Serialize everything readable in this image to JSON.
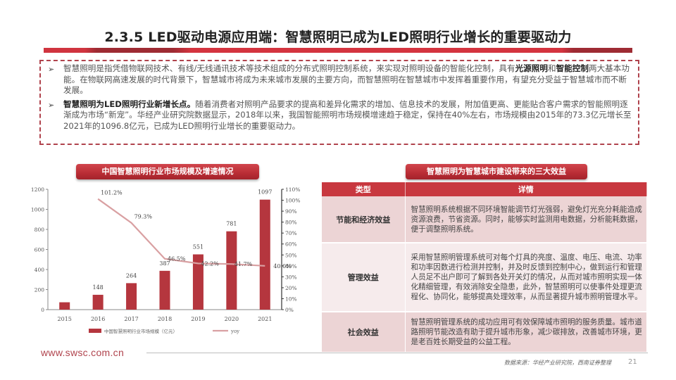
{
  "header": {
    "title": "2.3.5 LED驱动电源应用端：智慧照明已成为LED照明行业增长的重要驱动力"
  },
  "summary": {
    "bullets": [
      {
        "segments": [
          {
            "text": "智慧照明是指凭借物联网技术、有线/无线通讯技术等技术组成的分布式照明控制系统，来实现对照明设备的智能化控制，具有",
            "bold": false
          },
          {
            "text": "光源照明",
            "bold": true
          },
          {
            "text": "和",
            "bold": false
          },
          {
            "text": "智能控制",
            "bold": true
          },
          {
            "text": "两大基本功能。在物联网高速发展的时代背景下，智慧城市将成为未来城市发展的主要方向，而智慧照明在智慧城市中发挥着重要作用，有望充分受益于智慧城市而不断发展。",
            "bold": false
          }
        ]
      },
      {
        "segments": [
          {
            "text": "智慧照明为LED照明行业新增长点。",
            "bold": true
          },
          {
            "text": "随着消费者对照明产品要求的提高和差异化需求的增加、信息技术的发展，附加值更高、更能贴合客户需求的智能照明逐渐成为市场“新宠”。华经产业研究院数据显示，2018年以来，我国智能照明市场规模增速趋于稳定，保持在40%左右，市场规模由2015年的73.3亿元增长至2021年的1096.8亿元，已成为LED照明行业增长的重要驱动力。",
            "bold": false
          }
        ]
      }
    ]
  },
  "chart_section": {
    "title": "中国智慧照明行业市场规模及增速情况"
  },
  "chart_data": {
    "type": "bar",
    "title": "中国智慧照明行业市场规模及增速情况",
    "categories": [
      "2015",
      "2016",
      "2017",
      "2018",
      "2019",
      "2020",
      "2021"
    ],
    "series": [
      {
        "name": "中国智慧照明行业市场规模（亿元）",
        "type": "bar",
        "axis": "left",
        "values": [
          73.3,
          148,
          264,
          387,
          551,
          781,
          1097
        ],
        "labels": [
          "",
          "148",
          "264",
          "387",
          "551",
          "781",
          "1097"
        ],
        "color": "#b5363e"
      },
      {
        "name": "yoy",
        "type": "line",
        "axis": "right",
        "values": [
          null,
          101.2,
          79.3,
          46.5,
          42.2,
          41.7,
          40.0
        ],
        "labels": [
          "",
          "101.2%",
          "79.3%",
          "46.5%",
          "42.2%",
          "41.7%",
          "40.0%"
        ],
        "color": "#d9a0a2"
      }
    ],
    "left_axis": {
      "ticks": [
        "0",
        "200",
        "400",
        "600",
        "800",
        "1000",
        "1200"
      ],
      "ylim": [
        0,
        1200
      ]
    },
    "right_axis": {
      "ticks": [
        "0%",
        "10%",
        "20%",
        "30%",
        "40%",
        "50%",
        "60%",
        "70%",
        "80%",
        "90%",
        "100%",
        "110%"
      ],
      "ylim": [
        0,
        110
      ]
    },
    "xlabel": "",
    "ylabel": "",
    "grid": false,
    "legend_position": "bottom"
  },
  "table_section": {
    "title": "智慧照明为智慧城市建设带来的三大效益",
    "headers": [
      "类型",
      "详情"
    ],
    "rows": [
      {
        "type": "节能和经济效益",
        "detail": "智慧照明系统根据不同环境智能调节灯光强弱，避免灯光充分耗能造成资源浪费，节省资源。同时，能够实时监测用电数据，分析能耗数据，便于调整照明系统。"
      },
      {
        "type": "管理效益",
        "detail": "采用智慧照明管理系统可对每个灯具的亮度、温度、电压、电流、功率和功率因数进行检测并控制，并及时反馈到控制中心，做到运行和管理人员足不出户即可了解到各处开关灯的情况，从而对城市照明实现一体化精细管理，有效消除安全隐患，此外，智慧照明可以使事件处理更流程化、协同化，能够提高处理效率，从而显著提升城市照明管理水平。"
      },
      {
        "type": "社会效益",
        "detail": "智慧照明管理系统的成功应用可有效保障城市照明的服务质量。城市道路照明节能改造有助于提升城市形象，减少碳排放，改善城市环境，更是老百姓长期受益的公益工程。"
      }
    ]
  },
  "footer": {
    "url": "www.swsc.com.cn",
    "source": "数据来源：华经产业研究院，西南证券整理",
    "page_number": "21"
  },
  "colors": {
    "accent_red": "#c8383f",
    "dark_red": "#9e2b33",
    "row_dark": "#ecd4d5",
    "row_light": "#f6ebec",
    "line_color": "#d9a0a2"
  }
}
